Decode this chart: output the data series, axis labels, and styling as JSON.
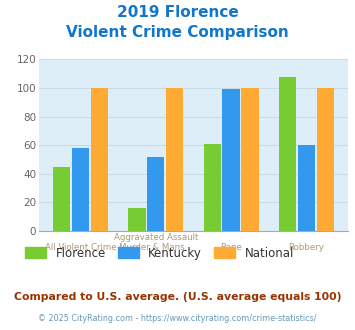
{
  "title_line1": "2019 Florence",
  "title_line2": "Violent Crime Comparison",
  "cat_top_labels": [
    "",
    "Aggravated Assault",
    "",
    ""
  ],
  "cat_bot_labels": [
    "All Violent Crime",
    "Murder & Mans...",
    "Rape",
    "Robbery"
  ],
  "florence": [
    45,
    16,
    61,
    108
  ],
  "kentucky": [
    58,
    52,
    99,
    60
  ],
  "national": [
    100,
    100,
    100,
    100
  ],
  "florence_color": "#77cc33",
  "kentucky_color": "#3399ee",
  "national_color": "#ffaa33",
  "ylim": [
    0,
    120
  ],
  "yticks": [
    0,
    20,
    40,
    60,
    80,
    100,
    120
  ],
  "grid_color": "#c8dce8",
  "bg_color": "#ddeef8",
  "title_color": "#1177cc",
  "xlabel_color": "#aa9977",
  "footer_text": "Compared to U.S. average. (U.S. average equals 100)",
  "footer_color": "#993300",
  "credit_text": "© 2025 CityRating.com - https://www.cityrating.com/crime-statistics/",
  "credit_color": "#6699bb",
  "legend_labels": [
    "Florence",
    "Kentucky",
    "National"
  ],
  "legend_text_color": "#333333"
}
